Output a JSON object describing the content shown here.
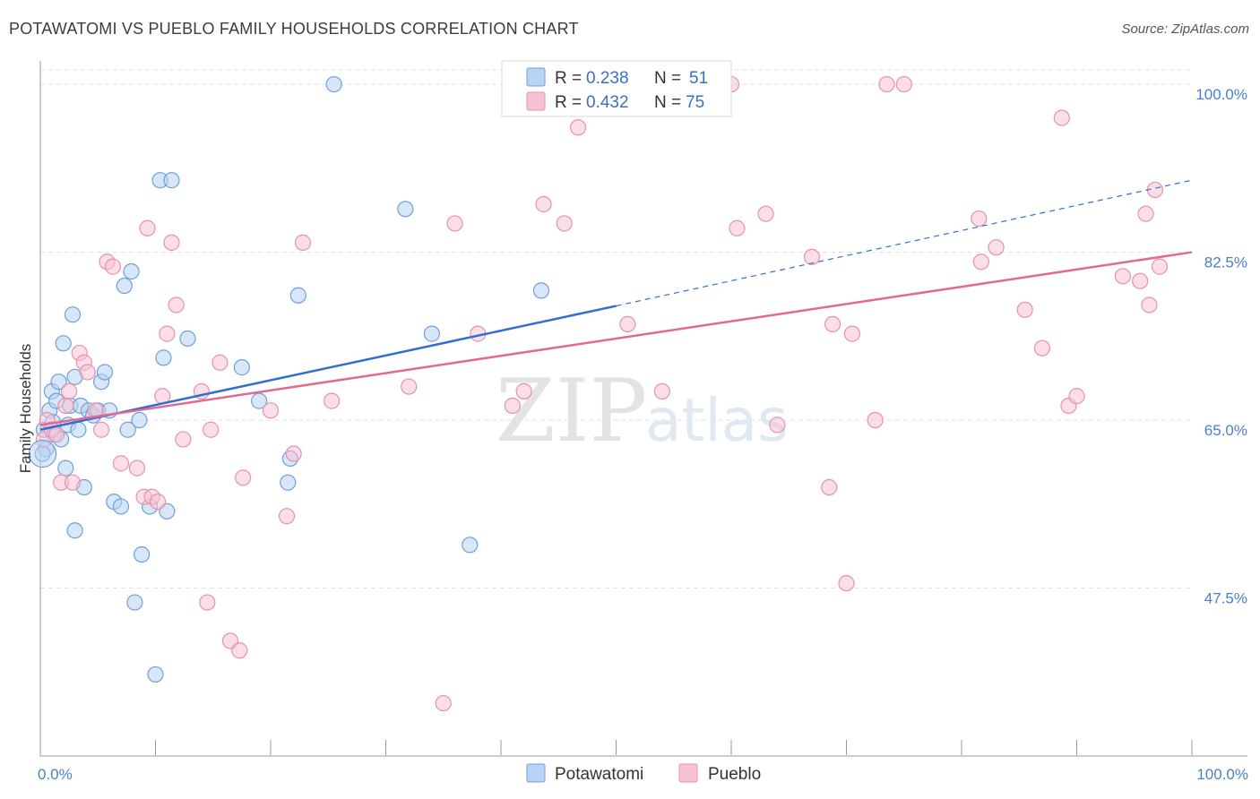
{
  "title": "POTAWATOMI VS PUEBLO FAMILY HOUSEHOLDS CORRELATION CHART",
  "source": "Source: ZipAtlas.com",
  "watermark": {
    "zip": "ZIP",
    "atlas": "atlas"
  },
  "colors": {
    "potawatomi_fill": "#b8d3f3",
    "potawatomi_stroke": "#6f9fdc",
    "potawatomi_line": "#2f6fcf",
    "pueblo_fill": "#f7c3d3",
    "pueblo_stroke": "#e592ad",
    "pueblo_line": "#e06a94",
    "axis_label": "#4a7fc9",
    "grid": "#dde3ea"
  },
  "legend": {
    "rows": [
      {
        "series": "Potawatomi",
        "r_label": "R = ",
        "r_value": "0.238",
        "n_label": "N = ",
        "n_value": "51"
      },
      {
        "series": "Pueblo",
        "r_label": "R = ",
        "r_value": "0.432",
        "n_label": "N = ",
        "n_value": "75"
      }
    ]
  },
  "chart_data": {
    "type": "scatter",
    "title": "POTAWATOMI VS PUEBLO FAMILY HOUSEHOLDS CORRELATION CHART",
    "xlabel": "",
    "ylabel": "Family Households",
    "xlim": [
      0,
      100
    ],
    "ylim": [
      30,
      101.5
    ],
    "x_tick_labels": [
      {
        "value": 0,
        "label": "0.0%"
      },
      {
        "value": 100,
        "label": "100.0%"
      }
    ],
    "x_minor_ticks": [
      10,
      20,
      30,
      40,
      50,
      60,
      70,
      80,
      90,
      100
    ],
    "y_ticks": [
      {
        "value": 47.5,
        "label": "47.5%"
      },
      {
        "value": 65.0,
        "label": "65.0%"
      },
      {
        "value": 82.5,
        "label": "82.5%"
      },
      {
        "value": 100.0,
        "label": "100.0%"
      }
    ],
    "grid": true,
    "legend_position": "top-center",
    "series": [
      {
        "name": "Potawatomi",
        "trend": {
          "x0": 0,
          "y0": 64.0,
          "x1": 50,
          "y1": 76.9,
          "dash_to_x": 100,
          "dash_to_y": 90.0
        },
        "points": [
          [
            0.3,
            64.0
          ],
          [
            0.5,
            62.0
          ],
          [
            0.8,
            66.0
          ],
          [
            1.0,
            68.0
          ],
          [
            1.2,
            63.5
          ],
          [
            1.4,
            67.0
          ],
          [
            1.6,
            69.0
          ],
          [
            1.8,
            63.0
          ],
          [
            2.0,
            73.0
          ],
          [
            2.2,
            60.0
          ],
          [
            2.4,
            64.5
          ],
          [
            2.6,
            66.5
          ],
          [
            2.8,
            76.0
          ],
          [
            3.0,
            69.5
          ],
          [
            3.3,
            64.0
          ],
          [
            3.5,
            66.5
          ],
          [
            3.8,
            58.0
          ],
          [
            4.2,
            66.0
          ],
          [
            4.6,
            65.5
          ],
          [
            5.0,
            66.0
          ],
          [
            5.3,
            69.0
          ],
          [
            5.6,
            70.0
          ],
          [
            6.0,
            66.0
          ],
          [
            6.4,
            56.5
          ],
          [
            7.0,
            56.0
          ],
          [
            7.3,
            79.0
          ],
          [
            7.6,
            64.0
          ],
          [
            7.9,
            80.5
          ],
          [
            8.2,
            46.0
          ],
          [
            8.6,
            65.0
          ],
          [
            8.8,
            51.0
          ],
          [
            9.5,
            56.0
          ],
          [
            10.0,
            38.5
          ],
          [
            10.4,
            90.0
          ],
          [
            10.7,
            71.5
          ],
          [
            11.0,
            55.5
          ],
          [
            11.4,
            90.0
          ],
          [
            12.8,
            73.5
          ],
          [
            17.5,
            70.5
          ],
          [
            19.0,
            67.0
          ],
          [
            21.5,
            58.5
          ],
          [
            21.7,
            61.0
          ],
          [
            22.4,
            78.0
          ],
          [
            25.5,
            100.0
          ],
          [
            31.7,
            87.0
          ],
          [
            34.0,
            74.0
          ],
          [
            37.3,
            52.0
          ],
          [
            43.5,
            78.5
          ],
          [
            3.0,
            53.5
          ],
          [
            1.1,
            64.8
          ],
          [
            0.2,
            61.5
          ]
        ]
      },
      {
        "name": "Pueblo",
        "trend": {
          "x0": 0,
          "y0": 64.5,
          "x1": 100,
          "y1": 82.5
        },
        "points": [
          [
            0.3,
            63.0
          ],
          [
            0.6,
            65.0
          ],
          [
            1.0,
            64.0
          ],
          [
            1.4,
            63.5
          ],
          [
            1.8,
            58.5
          ],
          [
            2.2,
            66.5
          ],
          [
            2.5,
            68.0
          ],
          [
            2.8,
            58.5
          ],
          [
            3.4,
            72.0
          ],
          [
            3.8,
            71.0
          ],
          [
            4.1,
            70.0
          ],
          [
            4.8,
            66.0
          ],
          [
            5.3,
            64.0
          ],
          [
            5.8,
            81.5
          ],
          [
            6.3,
            81.0
          ],
          [
            7.0,
            60.5
          ],
          [
            8.4,
            60.0
          ],
          [
            9.0,
            57.0
          ],
          [
            9.3,
            85.0
          ],
          [
            9.7,
            57.0
          ],
          [
            10.2,
            56.5
          ],
          [
            10.6,
            67.5
          ],
          [
            11.0,
            74.0
          ],
          [
            11.4,
            83.5
          ],
          [
            11.8,
            77.0
          ],
          [
            12.4,
            63.0
          ],
          [
            14.0,
            68.0
          ],
          [
            14.5,
            46.0
          ],
          [
            14.8,
            64.0
          ],
          [
            15.6,
            71.0
          ],
          [
            16.5,
            42.0
          ],
          [
            17.3,
            41.0
          ],
          [
            17.6,
            59.0
          ],
          [
            20.0,
            66.0
          ],
          [
            21.4,
            55.0
          ],
          [
            22.0,
            61.5
          ],
          [
            22.8,
            83.5
          ],
          [
            25.3,
            67.0
          ],
          [
            32.0,
            68.5
          ],
          [
            35.0,
            35.5
          ],
          [
            36.0,
            85.5
          ],
          [
            38.0,
            74.0
          ],
          [
            41.0,
            66.5
          ],
          [
            42.0,
            68.0
          ],
          [
            43.7,
            87.5
          ],
          [
            45.5,
            85.5
          ],
          [
            46.7,
            95.5
          ],
          [
            51.0,
            75.0
          ],
          [
            54.0,
            68.0
          ],
          [
            60.0,
            100.0
          ],
          [
            60.5,
            85.0
          ],
          [
            63.0,
            86.5
          ],
          [
            64.0,
            64.5
          ],
          [
            67.0,
            82.0
          ],
          [
            68.5,
            58.0
          ],
          [
            68.8,
            75.0
          ],
          [
            70.0,
            48.0
          ],
          [
            70.5,
            74.0
          ],
          [
            72.5,
            65.0
          ],
          [
            73.5,
            100.0
          ],
          [
            75.0,
            100.0
          ],
          [
            81.5,
            86.0
          ],
          [
            81.7,
            81.5
          ],
          [
            83.0,
            83.0
          ],
          [
            85.5,
            76.5
          ],
          [
            87.0,
            72.5
          ],
          [
            88.7,
            96.5
          ],
          [
            89.3,
            66.5
          ],
          [
            90.0,
            67.5
          ],
          [
            94.0,
            80.0
          ],
          [
            95.5,
            79.5
          ],
          [
            96.0,
            86.5
          ],
          [
            96.3,
            77.0
          ],
          [
            96.8,
            89.0
          ],
          [
            97.2,
            81.0
          ]
        ]
      }
    ]
  },
  "bottom_legend": [
    {
      "series": "Potawatomi",
      "label": "Potawatomi"
    },
    {
      "series": "Pueblo",
      "label": "Pueblo"
    }
  ]
}
